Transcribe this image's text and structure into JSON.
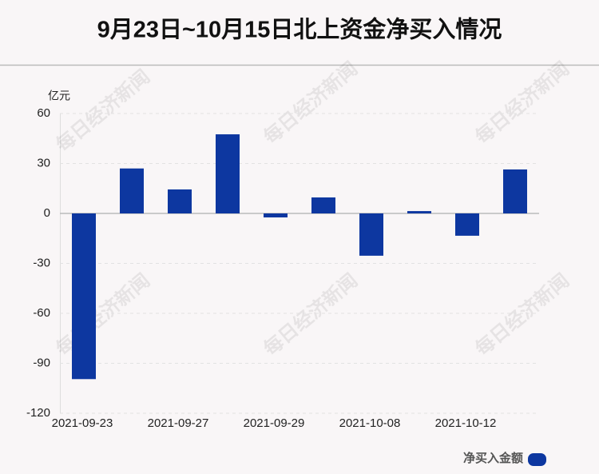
{
  "chart_data": {
    "type": "bar",
    "title": "9月23日~10月15日北上资金净买入情况",
    "y_label": "亿元",
    "watermark": "每日经济新闻",
    "categories": [
      "2021-09-23",
      null,
      "2021-09-27",
      null,
      "2021-09-29",
      null,
      "2021-10-08",
      null,
      "2021-10-12",
      null
    ],
    "series": [
      {
        "name": "净买入金额",
        "color": "#0d37a0",
        "values": [
          -99.5,
          27,
          14.4,
          47.5,
          -2.4,
          9.6,
          -25.4,
          1.4,
          -13.4,
          26.4
        ]
      }
    ],
    "ylim": [
      -120,
      60
    ],
    "yticks": [
      -120,
      -90,
      -60,
      -30,
      0,
      30,
      60
    ],
    "grid": true,
    "legend": "bottom-right"
  }
}
